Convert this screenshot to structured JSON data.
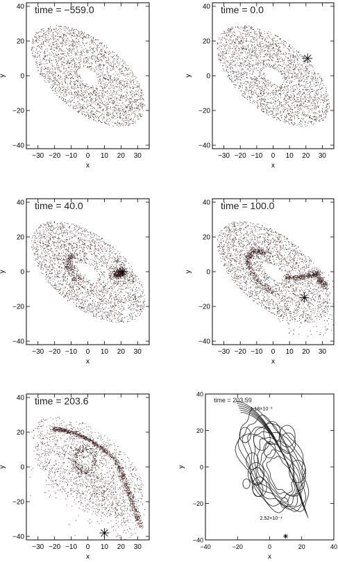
{
  "chart_data": [
    {
      "type": "scatter",
      "title": "time = −559.0",
      "xlabel": "x",
      "ylabel": "y",
      "xlim": [
        -37,
        37
      ],
      "ylim": [
        -42,
        42
      ],
      "xticks": [
        -30,
        -20,
        -10,
        0,
        10,
        20,
        30
      ],
      "yticks": [
        -40,
        -20,
        0,
        20,
        40
      ],
      "xtick_labels": [
        "−30",
        "−20",
        "−10",
        "0",
        "10",
        "20",
        "30"
      ],
      "ytick_labels": [
        "−40",
        "−20",
        "0",
        "20",
        "40"
      ],
      "description_points": "disk of particles",
      "disk": {
        "inner_radius": 7,
        "outer_radius": 40,
        "inclination_cos": 0.52,
        "position_angle_deg": -37
      },
      "perturber": null
    },
    {
      "type": "scatter",
      "title": "time = 0.0",
      "xlabel": "x",
      "ylabel": "y",
      "xlim": [
        -37,
        37
      ],
      "ylim": [
        -42,
        42
      ],
      "xticks": [
        -30,
        -20,
        -10,
        0,
        10,
        20,
        30
      ],
      "yticks": [
        -40,
        -20,
        0,
        20,
        40
      ],
      "xtick_labels": [
        "−30",
        "−20",
        "−10",
        "0",
        "10",
        "20",
        "30"
      ],
      "ytick_labels": [
        "−40",
        "−20",
        "0",
        "20",
        "40"
      ],
      "disk": {
        "inner_radius": 7,
        "outer_radius": 40,
        "inclination_cos": 0.52,
        "position_angle_deg": -37
      },
      "perturber": {
        "x": 21,
        "y": 10
      }
    },
    {
      "type": "scatter",
      "title": "time = 40.0",
      "xlabel": "x",
      "ylabel": "y",
      "xlim": [
        -37,
        37
      ],
      "ylim": [
        -42,
        42
      ],
      "xticks": [
        -30,
        -20,
        -10,
        0,
        10,
        20,
        30
      ],
      "yticks": [
        -40,
        -20,
        0,
        20,
        40
      ],
      "xtick_labels": [
        "−30",
        "−20",
        "−10",
        "0",
        "10",
        "20",
        "30"
      ],
      "ytick_labels": [
        "−40",
        "−20",
        "0",
        "20",
        "40"
      ],
      "disk": {
        "inner_radius": 7,
        "outer_radius": 40,
        "inclination_cos": 0.52,
        "position_angle_deg": -37
      },
      "perturber": {
        "x": 21,
        "y": 0
      }
    },
    {
      "type": "scatter",
      "title": "time = 100.0",
      "xlabel": "x",
      "ylabel": "y",
      "xlim": [
        -37,
        37
      ],
      "ylim": [
        -42,
        42
      ],
      "xticks": [
        -30,
        -20,
        -10,
        0,
        10,
        20,
        30
      ],
      "yticks": [
        -40,
        -20,
        0,
        20,
        40
      ],
      "xtick_labels": [
        "−30",
        "−20",
        "−10",
        "0",
        "10",
        "20",
        "30"
      ],
      "ytick_labels": [
        "−40",
        "−20",
        "0",
        "20",
        "40"
      ],
      "disk": {
        "inner_radius": 7,
        "outer_radius": 40,
        "inclination_cos": 0.52,
        "position_angle_deg": -37
      },
      "perturber": {
        "x": 19,
        "y": -15
      }
    },
    {
      "type": "scatter",
      "title": "time = 203.6",
      "xlabel": "x",
      "ylabel": "y",
      "xlim": [
        -37,
        37
      ],
      "ylim": [
        -42,
        42
      ],
      "xticks": [
        -30,
        -20,
        -10,
        0,
        10,
        20,
        30
      ],
      "yticks": [
        -40,
        -20,
        0,
        20,
        40
      ],
      "xtick_labels": [
        "−30",
        "−20",
        "−10",
        "0",
        "10",
        "20",
        "30"
      ],
      "ytick_labels": [
        "−40",
        "−20",
        "0",
        "20",
        "40"
      ],
      "disk": {
        "inner_radius": 7,
        "outer_radius": 40,
        "inclination_cos": 0.52,
        "position_angle_deg": -37
      },
      "perturber": {
        "x": 10,
        "y": -38
      }
    },
    {
      "type": "contour",
      "title": "time = 203.59",
      "xlabel": "x",
      "ylabel": "y",
      "xlim": [
        -40,
        40
      ],
      "ylim": [
        -40,
        40
      ],
      "xticks": [
        -40,
        -20,
        0,
        20,
        40
      ],
      "yticks": [
        -40,
        -20,
        0,
        20,
        40
      ],
      "xtick_labels": [
        "−40",
        "−20",
        "0",
        "20",
        "40"
      ],
      "ytick_labels": [
        "−40",
        "−20",
        "0",
        "20",
        "40"
      ],
      "contour_labels": [
        "1.18×10⁻³",
        "2.52×10⁻⁴"
      ],
      "perturber": {
        "x": 10,
        "y": -38
      }
    }
  ],
  "colors": {
    "points": "#3a2020",
    "axes": "#000000",
    "contour": "#222222"
  }
}
